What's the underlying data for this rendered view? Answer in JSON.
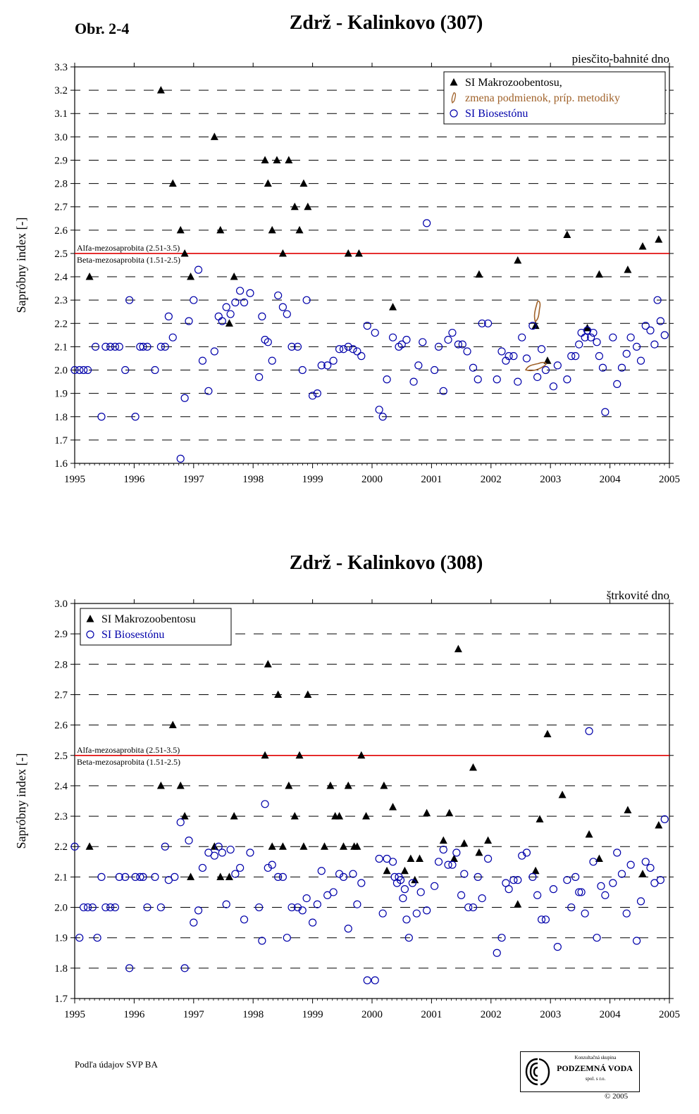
{
  "figure_label": "Obr. 2-4",
  "footer": {
    "source_note": "Podľa údajov SVP BA",
    "logo_text_top": "Konzultačná skupina",
    "logo_text_main": "PODZEMNÁ VODA",
    "logo_text_sub": "spol. s r.o.",
    "copyright": "© 2005"
  },
  "chart_data": [
    {
      "type": "scatter",
      "title": "Zdrž - Kalinkovo (307)",
      "subtitle": "piesčito-bahnité dno",
      "xlabel": "",
      "ylabel": "Sapróbny index [-]",
      "xlim": [
        1995,
        2005
      ],
      "ylim": [
        1.6,
        3.3
      ],
      "ytick_step": 0.1,
      "xticks": [
        1995,
        1996,
        1997,
        1998,
        1999,
        2000,
        2001,
        2002,
        2003,
        2004,
        2005
      ],
      "grid": true,
      "threshold": {
        "value": 2.5,
        "color": "#e00000",
        "label_above": "Alfa-mezosaprobita (2.51-3.5)",
        "label_below": "Beta-mezosaprobita (1.51-2.5)"
      },
      "legend": {
        "position": "top-right",
        "entries": [
          {
            "label": "SI Makrozoobentosu,",
            "marker": "triangle",
            "color": "#000000"
          },
          {
            "label": "zmena podmienok, príp. metodiky",
            "marker": "hand",
            "color": "#a0622a"
          },
          {
            "label": "SI Biosestónu",
            "marker": "circle",
            "color": "#0000aa"
          }
        ]
      },
      "annotations": [
        {
          "type": "hand",
          "x": 2002.78,
          "y": 2.25,
          "color": "#a0622a"
        },
        {
          "type": "hand",
          "x": 2002.75,
          "y": 2.01,
          "color": "#a0622a"
        }
      ],
      "series": [
        {
          "name": "SI Makrozoobentosu,",
          "marker": "triangle",
          "color": "#000000",
          "x": [
            1995.25,
            1996.45,
            1996.65,
            1996.78,
            1996.85,
            1996.95,
            1997.35,
            1997.45,
            1997.6,
            1997.68,
            1998.2,
            1998.25,
            1998.32,
            1998.4,
            1998.5,
            1998.6,
            1998.7,
            1998.78,
            1998.85,
            1998.92,
            1999.6,
            1999.78,
            2000.35,
            2001.8,
            2002.45,
            2002.75,
            2002.95,
            2003.28,
            2003.62,
            2003.82,
            2004.3,
            2004.55,
            2004.82
          ],
          "y": [
            2.4,
            3.2,
            2.8,
            2.6,
            2.5,
            2.4,
            3.0,
            2.6,
            2.2,
            2.4,
            2.9,
            2.8,
            2.6,
            2.9,
            2.5,
            2.9,
            2.7,
            2.6,
            2.8,
            2.7,
            2.5,
            2.5,
            2.27,
            2.41,
            2.47,
            2.19,
            2.04,
            2.58,
            2.18,
            2.41,
            2.43,
            2.53,
            2.56
          ]
        },
        {
          "name": "SI Biosestónu",
          "marker": "circle",
          "color": "#0000aa",
          "x": [
            1995.0,
            1995.08,
            1995.15,
            1995.22,
            1995.35,
            1995.45,
            1995.52,
            1995.6,
            1995.68,
            1995.75,
            1995.85,
            1995.92,
            1996.02,
            1996.1,
            1996.15,
            1996.22,
            1996.35,
            1996.45,
            1996.52,
            1996.58,
            1996.65,
            1996.78,
            1996.85,
            1996.92,
            1997.0,
            1997.08,
            1997.15,
            1997.25,
            1997.35,
            1997.42,
            1997.48,
            1997.55,
            1997.62,
            1997.7,
            1997.78,
            1997.85,
            1997.95,
            1998.1,
            1998.15,
            1998.2,
            1998.25,
            1998.32,
            1998.42,
            1998.5,
            1998.57,
            1998.65,
            1998.75,
            1998.83,
            1998.9,
            1999.0,
            1999.08,
            1999.15,
            1999.25,
            1999.35,
            1999.45,
            1999.52,
            1999.6,
            1999.68,
            1999.75,
            1999.82,
            1999.92,
            2000.05,
            2000.12,
            2000.18,
            2000.25,
            2000.35,
            2000.45,
            2000.5,
            2000.58,
            2000.7,
            2000.78,
            2000.85,
            2000.92,
            2001.05,
            2001.12,
            2001.2,
            2001.28,
            2001.35,
            2001.45,
            2001.52,
            2001.6,
            2001.7,
            2001.78,
            2001.85,
            2001.95,
            2002.1,
            2002.18,
            2002.25,
            2002.3,
            2002.38,
            2002.45,
            2002.52,
            2002.6,
            2002.7,
            2002.78,
            2002.85,
            2002.92,
            2003.05,
            2003.12,
            2003.28,
            2003.35,
            2003.42,
            2003.48,
            2003.52,
            2003.58,
            2003.62,
            2003.68,
            2003.72,
            2003.78,
            2003.82,
            2003.88,
            2003.92,
            2004.05,
            2004.12,
            2004.2,
            2004.28,
            2004.35,
            2004.45,
            2004.52,
            2004.6,
            2004.68,
            2004.75,
            2004.8,
            2004.85,
            2004.92
          ],
          "y": [
            2.0,
            2.0,
            2.0,
            2.0,
            2.1,
            1.8,
            2.1,
            2.1,
            2.1,
            2.1,
            2.0,
            2.3,
            1.8,
            2.1,
            2.1,
            2.1,
            2.0,
            2.1,
            2.1,
            2.23,
            2.14,
            1.62,
            1.88,
            2.21,
            2.3,
            2.43,
            2.04,
            1.91,
            2.08,
            2.23,
            2.21,
            2.27,
            2.24,
            2.29,
            2.34,
            2.29,
            2.33,
            1.97,
            2.23,
            2.13,
            2.12,
            2.04,
            2.32,
            2.27,
            2.24,
            2.1,
            2.1,
            2.0,
            2.3,
            1.89,
            1.9,
            2.02,
            2.02,
            2.04,
            2.09,
            2.09,
            2.1,
            2.09,
            2.08,
            2.06,
            2.19,
            2.16,
            1.83,
            1.8,
            1.96,
            2.14,
            2.1,
            2.11,
            2.13,
            1.95,
            2.02,
            2.12,
            2.63,
            2.0,
            2.1,
            1.91,
            2.13,
            2.16,
            2.11,
            2.11,
            2.08,
            2.01,
            1.96,
            2.2,
            2.2,
            1.96,
            2.08,
            2.04,
            2.06,
            2.06,
            1.95,
            2.14,
            2.05,
            2.19,
            1.97,
            2.09,
            2.0,
            1.93,
            2.02,
            1.96,
            2.06,
            2.06,
            2.11,
            2.16,
            2.14,
            2.17,
            2.14,
            2.16,
            2.12,
            2.06,
            2.01,
            1.82,
            2.14,
            1.94,
            2.01,
            2.07,
            2.14,
            2.1,
            2.04,
            2.19,
            2.17,
            2.11,
            2.3,
            2.21,
            2.15
          ]
        }
      ]
    },
    {
      "type": "scatter",
      "title": "Zdrž - Kalinkovo (308)",
      "subtitle": "štrkovité dno",
      "xlabel": "",
      "ylabel": "Sapróbny index [-]",
      "xlim": [
        1995,
        2005
      ],
      "ylim": [
        1.7,
        3.0
      ],
      "ytick_step": 0.1,
      "xticks": [
        1995,
        1996,
        1997,
        1998,
        1999,
        2000,
        2001,
        2002,
        2003,
        2004,
        2005
      ],
      "grid": true,
      "threshold": {
        "value": 2.5,
        "color": "#e00000",
        "label_above": "Alfa-mezosaprobita (2.51-3.5)",
        "label_below": "Beta-mezosaprobita (1.51-2.5)"
      },
      "legend": {
        "position": "top-left",
        "entries": [
          {
            "label": "SI Makrozoobentosu",
            "marker": "triangle",
            "color": "#000000"
          },
          {
            "label": "SI Biosestónu",
            "marker": "circle",
            "color": "#0000aa"
          }
        ]
      },
      "series": [
        {
          "name": "SI Makrozoobentosu",
          "marker": "triangle",
          "color": "#000000",
          "x": [
            1995.25,
            1996.45,
            1996.65,
            1996.78,
            1996.85,
            1996.95,
            1997.35,
            1997.45,
            1997.6,
            1997.68,
            1998.2,
            1998.25,
            1998.32,
            1998.42,
            1998.5,
            1998.6,
            1998.7,
            1998.78,
            1998.85,
            1998.92,
            1999.2,
            1999.3,
            1999.38,
            1999.45,
            1999.52,
            1999.6,
            1999.7,
            1999.75,
            1999.82,
            1999.9,
            2000.2,
            2000.25,
            2000.35,
            2000.55,
            2000.65,
            2000.72,
            2000.8,
            2000.92,
            2001.2,
            2001.3,
            2001.38,
            2001.45,
            2001.55,
            2001.7,
            2001.8,
            2001.95,
            2002.45,
            2002.75,
            2002.82,
            2002.95,
            2003.2,
            2003.65,
            2003.82,
            2004.3,
            2004.55,
            2004.82
          ],
          "y": [
            2.2,
            2.4,
            2.6,
            2.4,
            2.3,
            2.1,
            2.2,
            2.1,
            2.1,
            2.3,
            2.5,
            2.8,
            2.2,
            2.7,
            2.2,
            2.4,
            2.3,
            2.5,
            2.2,
            2.7,
            2.2,
            2.4,
            2.3,
            2.3,
            2.2,
            2.4,
            2.2,
            2.2,
            2.5,
            2.3,
            2.4,
            2.12,
            2.33,
            2.12,
            2.16,
            2.09,
            2.16,
            2.31,
            2.22,
            2.31,
            2.16,
            2.85,
            2.21,
            2.46,
            2.18,
            2.22,
            2.01,
            2.12,
            2.29,
            2.57,
            2.37,
            2.24,
            2.16,
            2.32,
            2.11,
            2.27
          ]
        },
        {
          "name": "SI Biosestónu",
          "marker": "circle",
          "color": "#0000aa",
          "x": [
            1995.0,
            1995.08,
            1995.15,
            1995.22,
            1995.3,
            1995.38,
            1995.45,
            1995.52,
            1995.6,
            1995.68,
            1995.75,
            1995.85,
            1995.92,
            1996.02,
            1996.1,
            1996.15,
            1996.22,
            1996.35,
            1996.45,
            1996.52,
            1996.58,
            1996.68,
            1996.78,
            1996.85,
            1996.92,
            1997.0,
            1997.08,
            1997.15,
            1997.25,
            1997.35,
            1997.42,
            1997.48,
            1997.55,
            1997.62,
            1997.7,
            1997.78,
            1997.85,
            1997.95,
            1998.1,
            1998.15,
            1998.2,
            1998.25,
            1998.32,
            1998.42,
            1998.5,
            1998.57,
            1998.65,
            1998.75,
            1998.83,
            1998.9,
            1999.0,
            1999.08,
            1999.15,
            1999.25,
            1999.35,
            1999.45,
            1999.52,
            1999.6,
            1999.68,
            1999.75,
            1999.82,
            1999.92,
            2000.05,
            2000.12,
            2000.18,
            2000.25,
            2000.35,
            2000.38,
            2000.42,
            2000.45,
            2000.48,
            2000.52,
            2000.55,
            2000.58,
            2000.62,
            2000.68,
            2000.75,
            2000.82,
            2000.92,
            2001.05,
            2001.12,
            2001.2,
            2001.28,
            2001.35,
            2001.42,
            2001.5,
            2001.55,
            2001.62,
            2001.7,
            2001.78,
            2001.85,
            2001.95,
            2002.1,
            2002.18,
            2002.25,
            2002.3,
            2002.38,
            2002.45,
            2002.52,
            2002.6,
            2002.7,
            2002.78,
            2002.85,
            2002.92,
            2003.05,
            2003.12,
            2003.28,
            2003.35,
            2003.42,
            2003.48,
            2003.52,
            2003.58,
            2003.65,
            2003.72,
            2003.78,
            2003.85,
            2003.92,
            2004.05,
            2004.12,
            2004.2,
            2004.28,
            2004.35,
            2004.45,
            2004.52,
            2004.6,
            2004.68,
            2004.75,
            2004.85,
            2004.92
          ],
          "y": [
            2.2,
            1.9,
            2.0,
            2.0,
            2.0,
            1.9,
            2.1,
            2.0,
            2.0,
            2.0,
            2.1,
            2.1,
            1.8,
            2.1,
            2.1,
            2.1,
            2.0,
            2.1,
            2.0,
            2.2,
            2.09,
            2.1,
            2.28,
            1.8,
            2.22,
            1.95,
            1.99,
            2.13,
            2.18,
            2.17,
            2.2,
            2.18,
            2.01,
            2.19,
            2.11,
            2.13,
            1.96,
            2.18,
            2.0,
            1.89,
            2.34,
            2.13,
            2.14,
            2.1,
            2.1,
            1.9,
            2.0,
            2.0,
            1.99,
            2.03,
            1.95,
            2.01,
            2.12,
            2.04,
            2.05,
            2.11,
            2.1,
            1.93,
            2.11,
            2.01,
            2.08,
            1.76,
            1.76,
            2.16,
            1.98,
            2.16,
            2.15,
            2.1,
            2.08,
            2.1,
            2.09,
            2.03,
            2.06,
            1.96,
            1.9,
            2.08,
            1.98,
            2.05,
            1.99,
            2.07,
            2.15,
            2.19,
            2.14,
            2.14,
            2.18,
            2.04,
            2.11,
            2.0,
            2.0,
            2.1,
            2.03,
            2.16,
            1.85,
            1.9,
            2.08,
            2.06,
            2.09,
            2.09,
            2.17,
            2.18,
            2.1,
            2.04,
            1.96,
            1.96,
            2.06,
            1.87,
            2.09,
            2.0,
            2.1,
            2.05,
            2.05,
            1.98,
            2.58,
            2.15,
            1.9,
            2.07,
            2.04,
            2.08,
            2.18,
            2.11,
            1.98,
            2.14,
            1.89,
            2.02,
            2.15,
            2.13,
            2.08,
            2.09,
            2.29
          ]
        }
      ]
    }
  ]
}
